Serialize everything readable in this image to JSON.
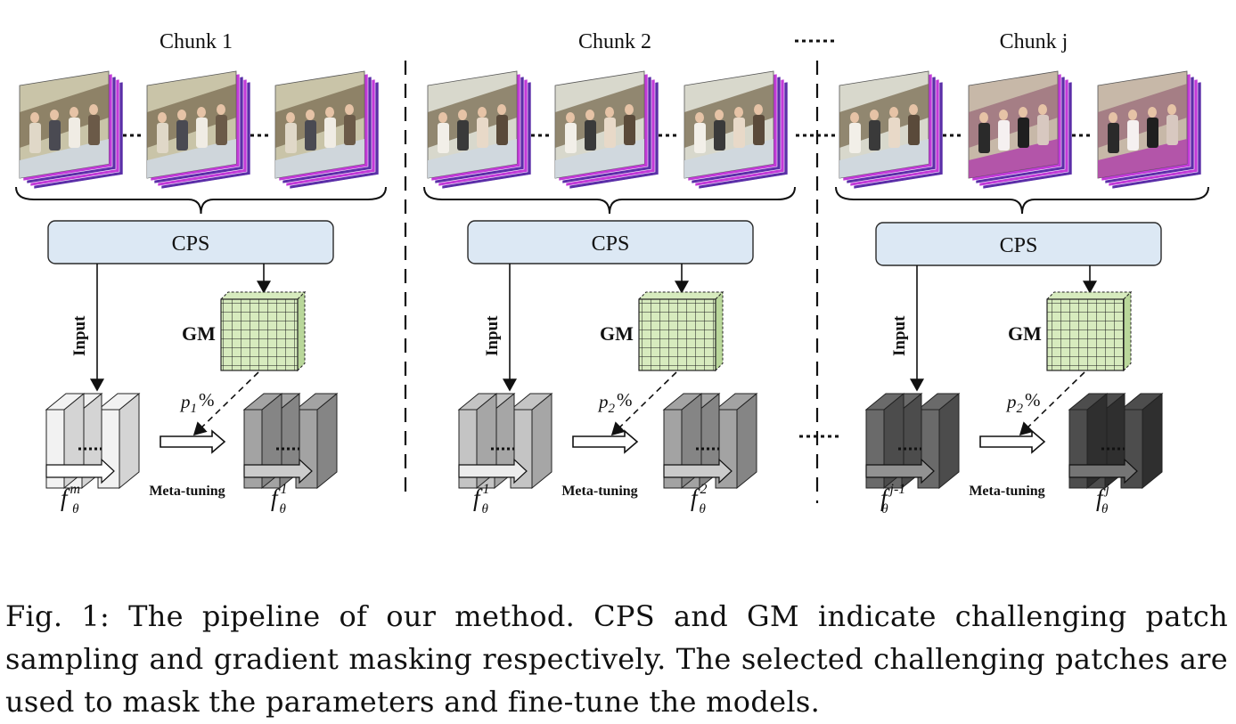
{
  "chunks": [
    {
      "title": "Chunk 1",
      "cps_label": "CPS",
      "gm_label": "GM",
      "input_label": "Input",
      "p_base": "p",
      "p_sub": "1",
      "p_suffix": "%",
      "meta_label": "Meta-tuning",
      "model_in_base": "f",
      "model_in_sub": "θ",
      "model_in_sup": "m",
      "model_out_base": "f",
      "model_out_sub": "θ",
      "model_out_sup": "1",
      "frames_scene": "scene-a",
      "frames_scene_alt": "scene-a"
    },
    {
      "title": "Chunk 2",
      "cps_label": "CPS",
      "gm_label": "GM",
      "input_label": "Input",
      "p_base": "p",
      "p_sub": "2",
      "p_suffix": "%",
      "meta_label": "Meta-tuning",
      "model_in_base": "f",
      "model_in_sub": "θ",
      "model_in_sup": "1",
      "model_out_base": "f",
      "model_out_sub": "θ",
      "model_out_sup": "2",
      "frames_scene": "scene-b",
      "frames_scene_alt": "scene-b"
    },
    {
      "title": "Chunk j",
      "cps_label": "CPS",
      "gm_label": "GM",
      "input_label": "Input",
      "p_base": "p",
      "p_sub": "2",
      "p_suffix": "%",
      "meta_label": "Meta-tuning",
      "model_in_base": "f",
      "model_in_sub": "θ",
      "model_in_sup": "j-1",
      "model_out_base": "f",
      "model_out_sub": "θ",
      "model_out_sup": "j",
      "frames_scene": "scene-b",
      "frames_scene_alt": "scene-c"
    }
  ],
  "between_chunks_ellipsis": "......",
  "caption": "Fig. 1: The pipeline of our method. CPS and GM indicate challenging patch sampling and gradient masking respectively. The selected challenging patches are used to mask the parameters and fine-tune the models.",
  "colors": {
    "cps_fill": "#dce8f4",
    "cps_stroke": "#2a2a2a",
    "gm_fill": "#d7ebbe",
    "scene_a_sky": "#c9c4a8",
    "scene_b_sky": "#d8d8cc",
    "scene_c_sky": "#c7b8a8",
    "edge_magenta": "#c23ad8",
    "edge_purple": "#5b2ea8",
    "model_shades": [
      "#f2f2f2",
      "#c4c4c4",
      "#a3a3a3",
      "#6a6a6a",
      "#4d4d4d"
    ]
  }
}
